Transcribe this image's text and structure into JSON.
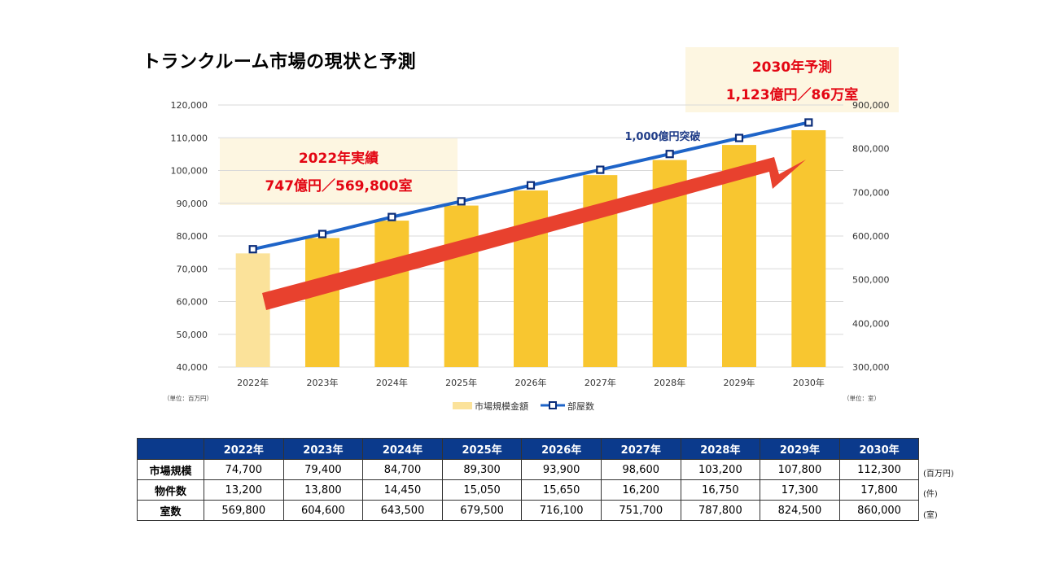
{
  "title": "トランクルーム市場の現状と予測",
  "chart_data": {
    "type": "bar+line",
    "categories": [
      "2022年",
      "2023年",
      "2024年",
      "2025年",
      "2026年",
      "2027年",
      "2028年",
      "2029年",
      "2030年"
    ],
    "series": [
      {
        "name": "市場規模金額",
        "type": "bar",
        "axis": "left",
        "values": [
          74700,
          79400,
          84700,
          89300,
          93900,
          98600,
          103200,
          107800,
          112300
        ],
        "colors": [
          "#fbe29a",
          "#f8c630",
          "#f8c630",
          "#f8c630",
          "#f8c630",
          "#f8c630",
          "#f8c630",
          "#f8c630",
          "#f8c630"
        ]
      },
      {
        "name": "部屋数",
        "type": "line",
        "axis": "right",
        "values": [
          569800,
          604600,
          643500,
          679500,
          716100,
          751700,
          787800,
          824500,
          860000
        ],
        "color": "#1e64c8"
      }
    ],
    "left_axis": {
      "min": 40000,
      "max": 120000,
      "step": 10000,
      "ticks": [
        "40,000",
        "50,000",
        "60,000",
        "70,000",
        "80,000",
        "90,000",
        "100,000",
        "110,000",
        "120,000"
      ],
      "unit": "（単位：百万円）"
    },
    "right_axis": {
      "min": 300000,
      "max": 900000,
      "step": 100000,
      "ticks": [
        "300,000",
        "400,000",
        "500,000",
        "600,000",
        "700,000",
        "800,000",
        "900,000"
      ],
      "unit": "（単位：室）"
    },
    "grid": true,
    "legend_position": "bottom"
  },
  "callouts": {
    "actual": {
      "line1": "2022年実績",
      "line2": "747億円／569,800室"
    },
    "forecast": {
      "line1": "2030年予測",
      "line2": "1,123億円／86万室"
    },
    "milestone": "1,000億円突破"
  },
  "colors": {
    "bar": "#f8c630",
    "bar_actual": "#fbe29a",
    "line": "#1e64c8",
    "marker": "#0b2d7a",
    "arrow": "#e8412e",
    "callout_bg": "#fdf6e1",
    "table_header": "#0b3a8c",
    "callout_text": "#e30613"
  },
  "table": {
    "header": [
      "2022年",
      "2023年",
      "2024年",
      "2025年",
      "2026年",
      "2027年",
      "2028年",
      "2029年",
      "2030年"
    ],
    "rows": [
      {
        "label": "市場規模",
        "values": [
          "74,700",
          "79,400",
          "84,700",
          "89,300",
          "93,900",
          "98,600",
          "103,200",
          "107,800",
          "112,300"
        ],
        "unit": "(百万円)"
      },
      {
        "label": "物件数",
        "values": [
          "13,200",
          "13,800",
          "14,450",
          "15,050",
          "15,650",
          "16,200",
          "16,750",
          "17,300",
          "17,800"
        ],
        "unit": "(件)"
      },
      {
        "label": "室数",
        "values": [
          "569,800",
          "604,600",
          "643,500",
          "679,500",
          "716,100",
          "751,700",
          "787,800",
          "824,500",
          "860,000"
        ],
        "unit": "(室)"
      }
    ]
  }
}
